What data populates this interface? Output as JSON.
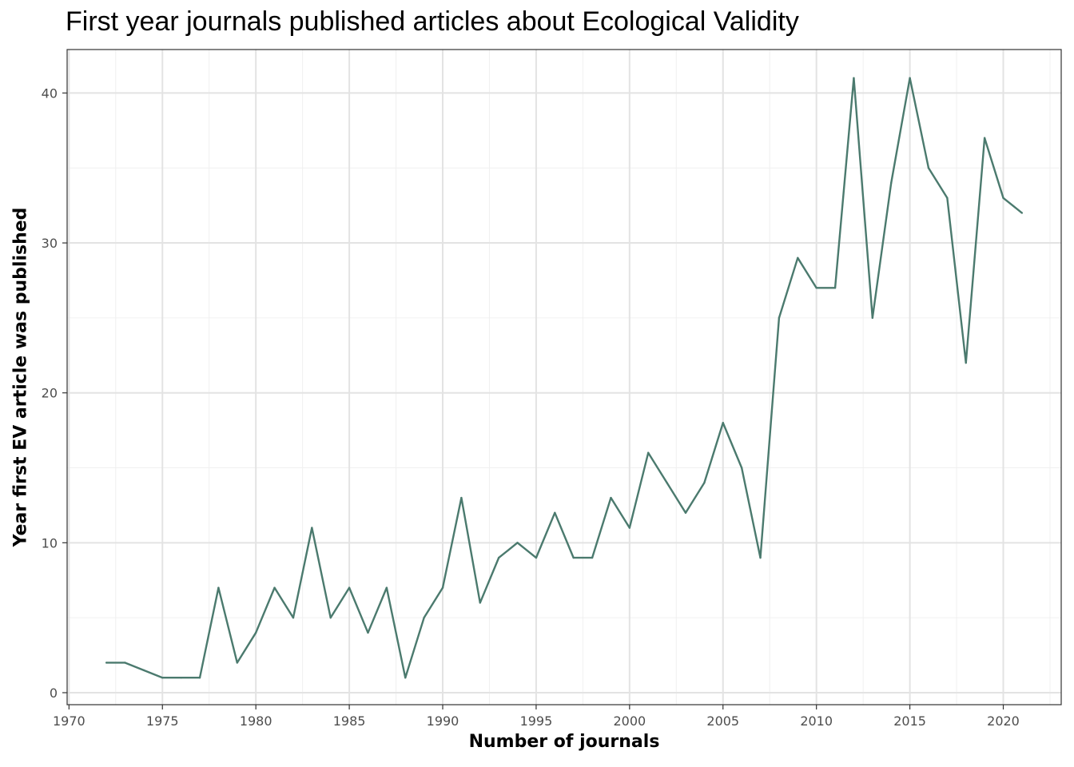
{
  "chart_data": {
    "type": "line",
    "title": "First year journals published articles about Ecological Validity",
    "xlabel": "Number of journals",
    "ylabel": "Year first EV article was published",
    "xlim": [
      1969.9,
      2023.1
    ],
    "ylim": [
      -0.8,
      42.9
    ],
    "xticks": [
      1970,
      1975,
      1980,
      1985,
      1990,
      1995,
      2000,
      2005,
      2010,
      2015,
      2020
    ],
    "yticks": [
      0,
      10,
      20,
      30,
      40
    ],
    "grid": true,
    "line_color": "#4b7a6e",
    "x": [
      1972,
      1973,
      1974,
      1975,
      1976,
      1977,
      1978,
      1979,
      1980,
      1981,
      1982,
      1983,
      1984,
      1985,
      1986,
      1987,
      1988,
      1989,
      1990,
      1991,
      1992,
      1993,
      1994,
      1995,
      1996,
      1997,
      1998,
      1999,
      2000,
      2001,
      2002,
      2003,
      2004,
      2005,
      2006,
      2007,
      2008,
      2009,
      2010,
      2011,
      2012,
      2013,
      2014,
      2015,
      2016,
      2017,
      2018,
      2019,
      2020,
      2021
    ],
    "values": [
      2,
      2,
      1.5,
      1,
      1,
      1,
      7,
      2,
      4,
      7,
      5,
      11,
      5,
      7,
      4,
      7,
      1,
      5,
      7,
      13,
      6,
      9,
      10,
      9,
      12,
      9,
      9,
      13,
      11,
      16,
      14,
      12,
      14,
      18,
      15,
      9,
      25,
      29,
      27,
      27,
      41,
      25,
      34,
      41,
      35,
      33,
      22,
      37,
      33,
      32
    ]
  }
}
